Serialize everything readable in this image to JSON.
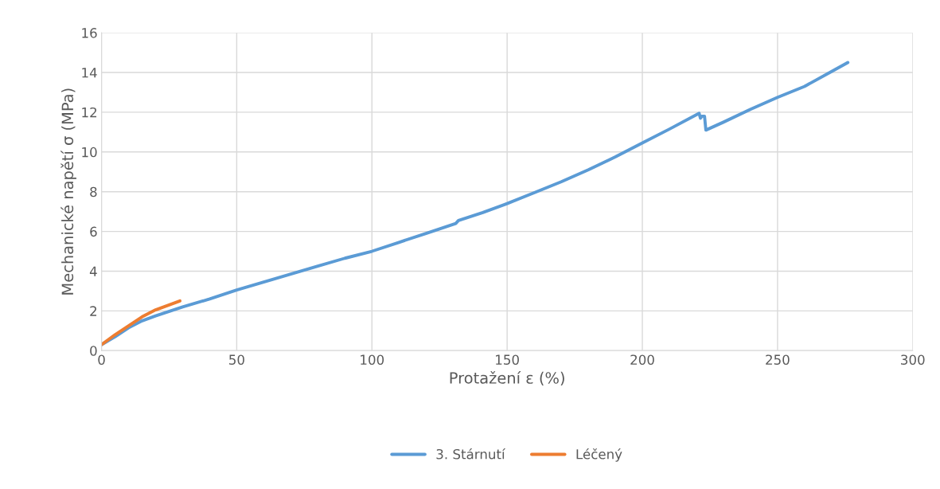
{
  "chart_data": {
    "type": "line",
    "xlabel": "Protažení ε (%)",
    "ylabel": "Mechanické napětí σ (MPa)",
    "xlim": [
      0,
      300
    ],
    "xticks": [
      0,
      50,
      100,
      150,
      200,
      250,
      300
    ],
    "ylim": [
      0,
      16
    ],
    "yticks": [
      0,
      2,
      4,
      6,
      8,
      10,
      12,
      14,
      16
    ],
    "grid": true,
    "legend": "bottom",
    "marker": "none",
    "line_style": "solid",
    "series": [
      {
        "name": "3. Stárnutí",
        "color": "#5b9bd5",
        "x": [
          0,
          5,
          10,
          15,
          20,
          30,
          40,
          50,
          60,
          70,
          80,
          90,
          100,
          110,
          120,
          131,
          132,
          141,
          142,
          150,
          160,
          170,
          180,
          190,
          200,
          210,
          221,
          221.5,
          222,
          223,
          223.5,
          230,
          240,
          250,
          260,
          270,
          276
        ],
        "values": [
          0.3,
          0.7,
          1.15,
          1.5,
          1.75,
          2.2,
          2.6,
          3.05,
          3.45,
          3.85,
          4.25,
          4.65,
          5.0,
          5.45,
          5.9,
          6.4,
          6.55,
          6.95,
          7.0,
          7.4,
          7.95,
          8.5,
          9.1,
          9.75,
          10.45,
          11.15,
          11.95,
          11.7,
          11.8,
          11.8,
          11.1,
          11.5,
          12.15,
          12.75,
          13.3,
          14.05,
          14.5
        ]
      },
      {
        "name": "Léčený",
        "color": "#ed7d31",
        "x": [
          0,
          5,
          10,
          15,
          20,
          25,
          29
        ],
        "values": [
          0.3,
          0.8,
          1.25,
          1.7,
          2.05,
          2.3,
          2.5
        ]
      }
    ]
  }
}
